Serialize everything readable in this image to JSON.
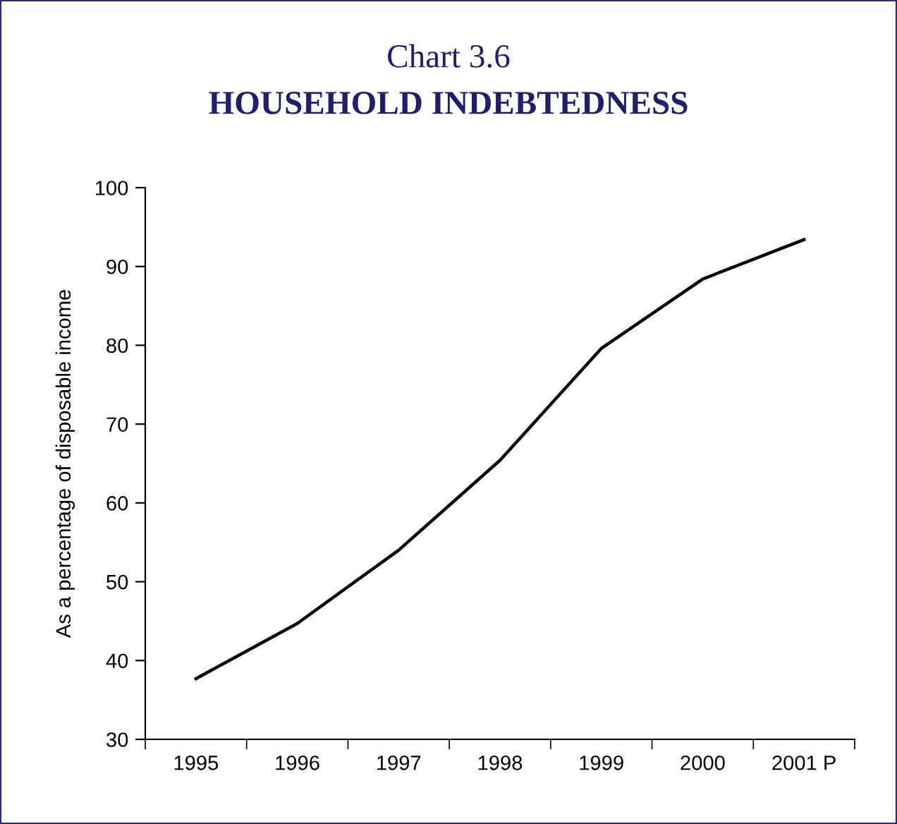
{
  "chart_data": {
    "type": "line",
    "title": "Chart 3.6",
    "subtitle": "HOUSEHOLD INDEBTEDNESS",
    "ylabel": "As a percentage of disposable income",
    "categories": [
      "1995",
      "1996",
      "1997",
      "1998",
      "1999",
      "2000",
      "2001 P"
    ],
    "series": [
      {
        "color": "#000000",
        "values": [
          37.7,
          44.7,
          54.0,
          65.4,
          79.6,
          88.4,
          93.4
        ]
      }
    ],
    "ylim": [
      30,
      100
    ],
    "yticks": [
      30,
      40,
      50,
      60,
      70,
      80,
      90,
      100
    ],
    "grid": false,
    "legend": false,
    "marker": "none",
    "line_style": "solid"
  }
}
